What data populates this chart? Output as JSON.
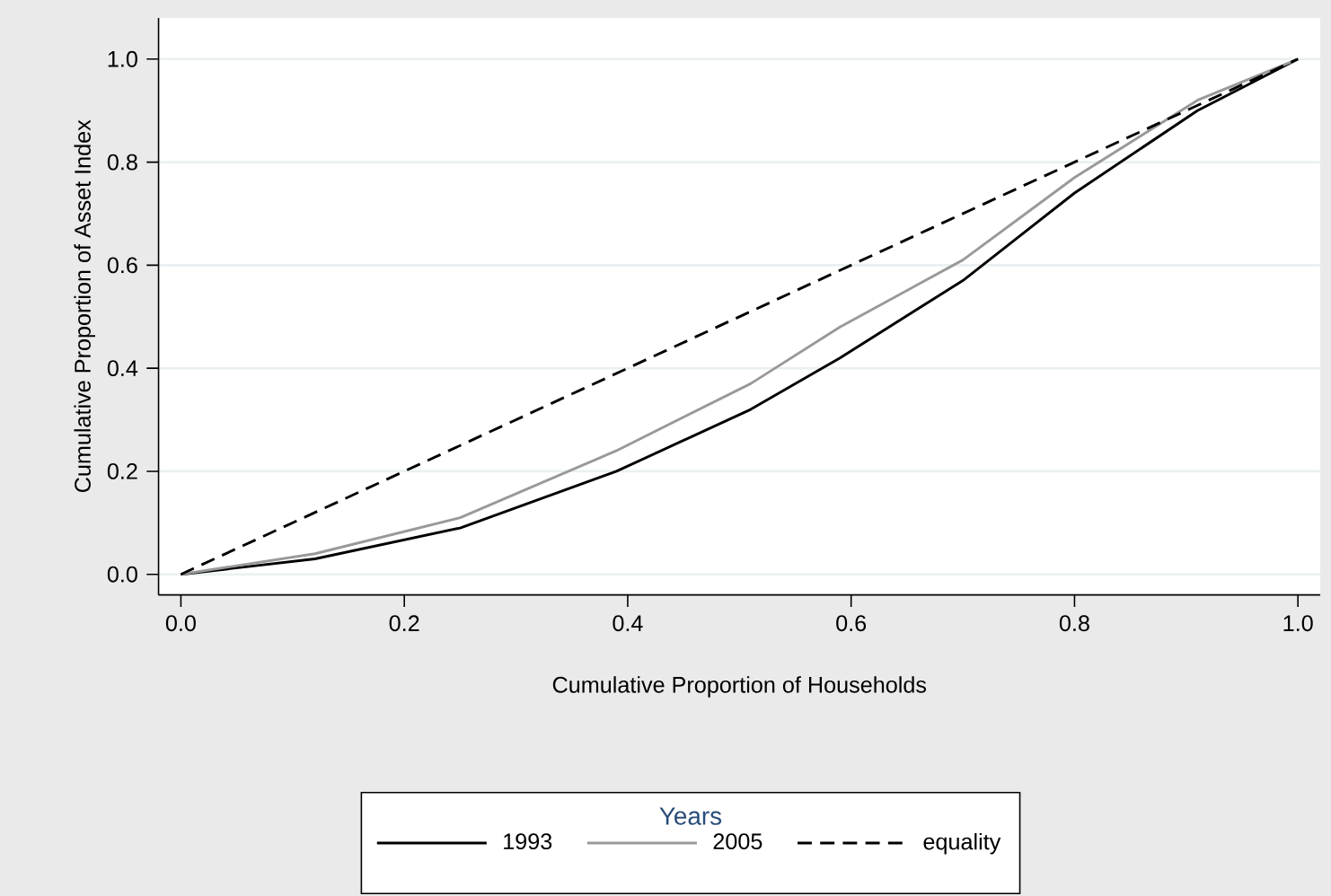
{
  "chart_data": {
    "type": "line",
    "xlabel": "Cumulative Proportion of Households",
    "ylabel": "Cumulative Proportion of Asset Index",
    "legend_title": "Years",
    "legend": "bottom",
    "grid": "y",
    "xlim": [
      -0.02,
      1.02
    ],
    "ylim": [
      -0.04,
      1.08
    ],
    "xticks": [
      {
        "value": 0,
        "label": "0.0"
      },
      {
        "value": 0.2,
        "label": "0.2"
      },
      {
        "value": 0.4,
        "label": "0.4"
      },
      {
        "value": 0.6,
        "label": "0.6"
      },
      {
        "value": 0.8,
        "label": "0.8"
      },
      {
        "value": 1,
        "label": "1.0"
      }
    ],
    "yticks": [
      {
        "value": 0,
        "label": "0.0"
      },
      {
        "value": 0.2,
        "label": "0.2"
      },
      {
        "value": 0.4,
        "label": "0.4"
      },
      {
        "value": 0.6,
        "label": "0.6"
      },
      {
        "value": 0.8,
        "label": "0.8"
      },
      {
        "value": 1,
        "label": "1.0"
      }
    ],
    "series": [
      {
        "name": "1993",
        "color": "#000000",
        "line_style": "solid",
        "x": [
          0,
          0.12,
          0.25,
          0.39,
          0.51,
          0.59,
          0.7,
          0.8,
          0.91,
          1
        ],
        "values": [
          0,
          0.03,
          0.09,
          0.2,
          0.32,
          0.42,
          0.57,
          0.74,
          0.9,
          1
        ]
      },
      {
        "name": "2005",
        "color": "#999999",
        "line_style": "solid",
        "x": [
          0,
          0.12,
          0.25,
          0.39,
          0.51,
          0.59,
          0.7,
          0.8,
          0.91,
          1
        ],
        "values": [
          0,
          0.04,
          0.11,
          0.24,
          0.37,
          0.48,
          0.61,
          0.77,
          0.92,
          1
        ]
      },
      {
        "name": "equality",
        "color": "#000000",
        "line_style": "dashed",
        "x": [
          0,
          1
        ],
        "values": [
          0,
          1
        ]
      }
    ]
  }
}
